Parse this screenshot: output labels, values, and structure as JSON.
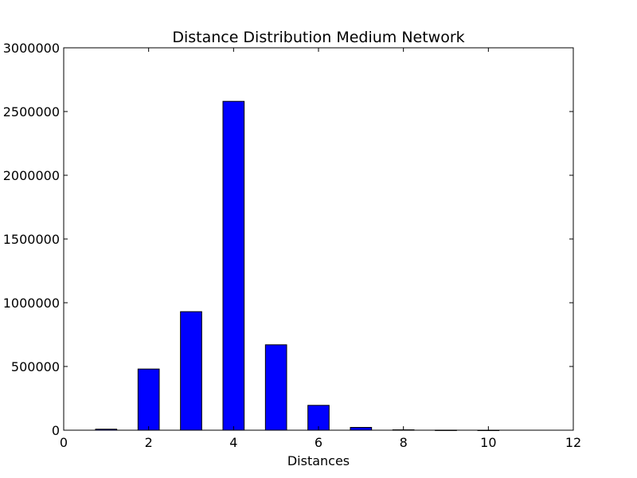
{
  "chart_data": {
    "type": "bar",
    "title": "Distance Distribution Medium Network",
    "xlabel": "Distances",
    "ylabel": "",
    "xlim": [
      0,
      12
    ],
    "ylim": [
      0,
      3000000
    ],
    "xticks": [
      0,
      2,
      4,
      6,
      8,
      10,
      12
    ],
    "xtick_labels": [
      "0",
      "2",
      "4",
      "6",
      "8",
      "10",
      "12"
    ],
    "yticks": [
      0,
      500000,
      1000000,
      1500000,
      2000000,
      2500000,
      3000000
    ],
    "ytick_labels": [
      "0",
      "500000",
      "1000000",
      "1500000",
      "2000000",
      "2500000",
      "3000000"
    ],
    "bar_width": 0.5,
    "grid": false,
    "bar_color": "#0000ff",
    "edge_color": "#000000",
    "x": [
      1,
      2,
      3,
      4,
      5,
      6,
      7,
      8,
      9,
      10
    ],
    "values": [
      8000,
      480000,
      930000,
      2580000,
      670000,
      195000,
      22000,
      3000,
      500,
      100
    ]
  }
}
